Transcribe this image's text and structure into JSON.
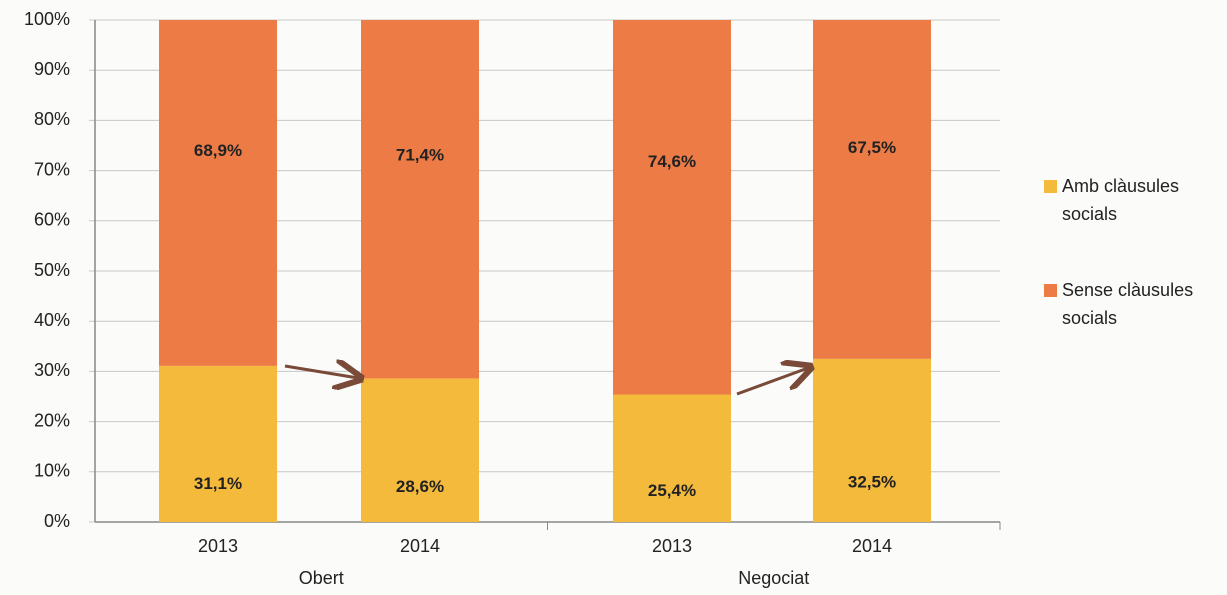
{
  "chart_data": {
    "type": "stacked-bar",
    "categories": [
      "2013",
      "2014",
      "2013",
      "2014"
    ],
    "groups": [
      "Obert",
      "Negociat"
    ],
    "series": [
      {
        "name": "Amb clàusules socials",
        "color": "#f4ba3c",
        "values": [
          31.1,
          28.6,
          25.4,
          32.5
        ],
        "value_labels": [
          "31,1%",
          "28,6%",
          "25,4%",
          "32,5%"
        ]
      },
      {
        "name": "Sense clàusules socials",
        "color": "#ec7b45",
        "values": [
          68.9,
          71.4,
          74.6,
          67.5
        ],
        "value_labels": [
          "68,9%",
          "71,4%",
          "74,6%",
          "67,5%"
        ]
      }
    ],
    "ylim": [
      0,
      100
    ],
    "yticks": [
      {
        "value": 0,
        "label": "0%"
      },
      {
        "value": 10,
        "label": "10%"
      },
      {
        "value": 20,
        "label": "20%"
      },
      {
        "value": 30,
        "label": "30%"
      },
      {
        "value": 40,
        "label": "40%"
      },
      {
        "value": 50,
        "label": "50%"
      },
      {
        "value": 60,
        "label": "60%"
      },
      {
        "value": 70,
        "label": "70%"
      },
      {
        "value": 80,
        "label": "80%"
      },
      {
        "value": 90,
        "label": "90%"
      },
      {
        "value": 100,
        "label": "100%"
      }
    ],
    "grid": true
  }
}
